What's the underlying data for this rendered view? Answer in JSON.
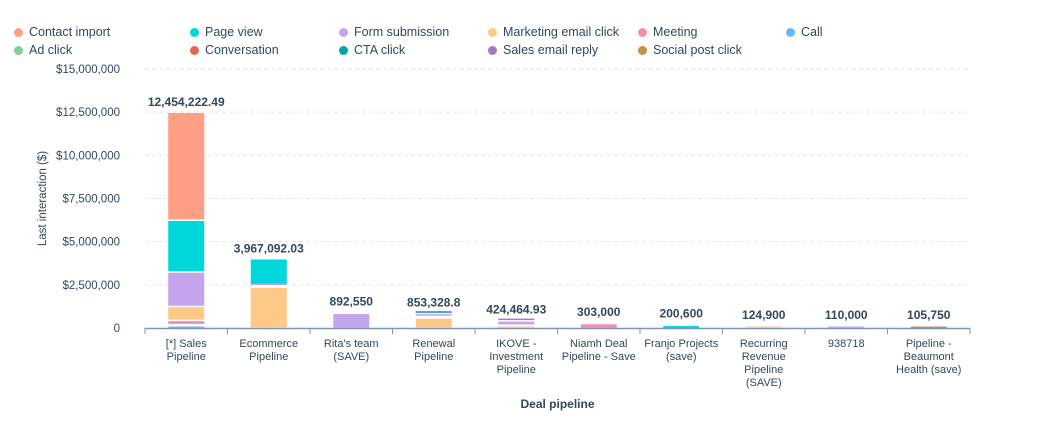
{
  "chart_data": {
    "type": "bar",
    "stacked": true,
    "xlabel": "Deal pipeline",
    "ylabel": "Last interaction ($)",
    "ylim": [
      0,
      15000000
    ],
    "yticks": [
      "0",
      "$2,500,000",
      "$5,000,000",
      "$7,500,000",
      "$10,000,000",
      "$12,500,000",
      "$15,000,000"
    ],
    "ytick_values": [
      0,
      2500000,
      5000000,
      7500000,
      10000000,
      12500000,
      15000000
    ],
    "grid": true,
    "legend_position": "top",
    "categories": [
      [
        "[*] Sales",
        "Pipeline"
      ],
      [
        "Ecommerce",
        "Pipeline"
      ],
      [
        "Rita's team",
        "(SAVE)"
      ],
      [
        "Renewal",
        "Pipeline"
      ],
      [
        "IKOVE -",
        "Investment",
        "Pipeline"
      ],
      [
        "Niamh Deal",
        "Pipeline - Save"
      ],
      [
        "Franjo Projects",
        "(save)"
      ],
      [
        "Recurring",
        "Revenue",
        "Pipeline",
        "(SAVE)"
      ],
      [
        "938718"
      ],
      [
        "Pipeline -",
        "Beaumont",
        "Health (save)"
      ]
    ],
    "totals": [
      12454222.49,
      3967092.03,
      892550,
      853328.8,
      424464.93,
      303000,
      200600,
      124900,
      110000,
      105750
    ],
    "total_labels": [
      "12,454,222.49",
      "3,967,092.03",
      "892,550",
      "853,328.8",
      "424,464.93",
      "303,000",
      "200,600",
      "124,900",
      "110,000",
      "105,750"
    ],
    "series": [
      {
        "name": "Call",
        "color": "#6ab7f5",
        "values": [
          150000,
          0,
          0,
          0,
          0,
          0,
          0,
          0,
          0,
          0
        ]
      },
      {
        "name": "Meeting",
        "color": "#f58fb0",
        "values": [
          250000,
          0,
          0,
          0,
          0,
          303000,
          0,
          0,
          0,
          0
        ]
      },
      {
        "name": "Marketing email click",
        "color": "#fcc986",
        "values": [
          800000,
          2400000,
          0,
          623328.8,
          120000,
          0,
          0,
          124900,
          0,
          0
        ]
      },
      {
        "name": "Form submission",
        "color": "#c4a4ec",
        "values": [
          2000000,
          80000,
          892550,
          150000,
          250000,
          0,
          0,
          0,
          110000,
          0
        ]
      },
      {
        "name": "Sales email reply",
        "color": "#9e7ac9",
        "values": [
          0,
          0,
          0,
          40000,
          54464.93,
          0,
          0,
          0,
          0,
          0
        ]
      },
      {
        "name": "Page view",
        "color": "#00d7db",
        "values": [
          3000000,
          1487092.03,
          0,
          40000,
          0,
          0,
          200600,
          0,
          0,
          0
        ]
      },
      {
        "name": "Contact import",
        "color": "#ff9f85",
        "values": [
          6254222.49,
          0,
          0,
          0,
          0,
          0,
          0,
          0,
          0,
          0
        ]
      },
      {
        "name": "Social post click",
        "color": "#c3924a",
        "values": [
          0,
          0,
          0,
          0,
          0,
          0,
          0,
          0,
          0,
          105750
        ]
      },
      {
        "name": "Ad click",
        "color": "#81d18f",
        "values": [
          0,
          0,
          0,
          0,
          0,
          0,
          0,
          0,
          0,
          0
        ]
      },
      {
        "name": "Conversation",
        "color": "#e0684f",
        "values": [
          0,
          0,
          0,
          0,
          0,
          0,
          0,
          0,
          0,
          0
        ]
      },
      {
        "name": "CTA click",
        "color": "#00a4a6",
        "values": [
          0,
          0,
          0,
          0,
          0,
          0,
          0,
          0,
          0,
          0
        ]
      }
    ],
    "legend": [
      {
        "label": "Contact import",
        "color": "#ff9f85"
      },
      {
        "label": "Page view",
        "color": "#00d7db"
      },
      {
        "label": "Form submission",
        "color": "#c4a4ec"
      },
      {
        "label": "Marketing email click",
        "color": "#fcc986"
      },
      {
        "label": "Meeting",
        "color": "#f58fb0"
      },
      {
        "label": "Call",
        "color": "#6ab7f5"
      },
      {
        "label": "Ad click",
        "color": "#81d18f"
      },
      {
        "label": "Conversation",
        "color": "#e0684f"
      },
      {
        "label": "CTA click",
        "color": "#00a4a6"
      },
      {
        "label": "Sales email reply",
        "color": "#9e7ac9"
      },
      {
        "label": "Social post click",
        "color": "#c3924a"
      }
    ]
  }
}
